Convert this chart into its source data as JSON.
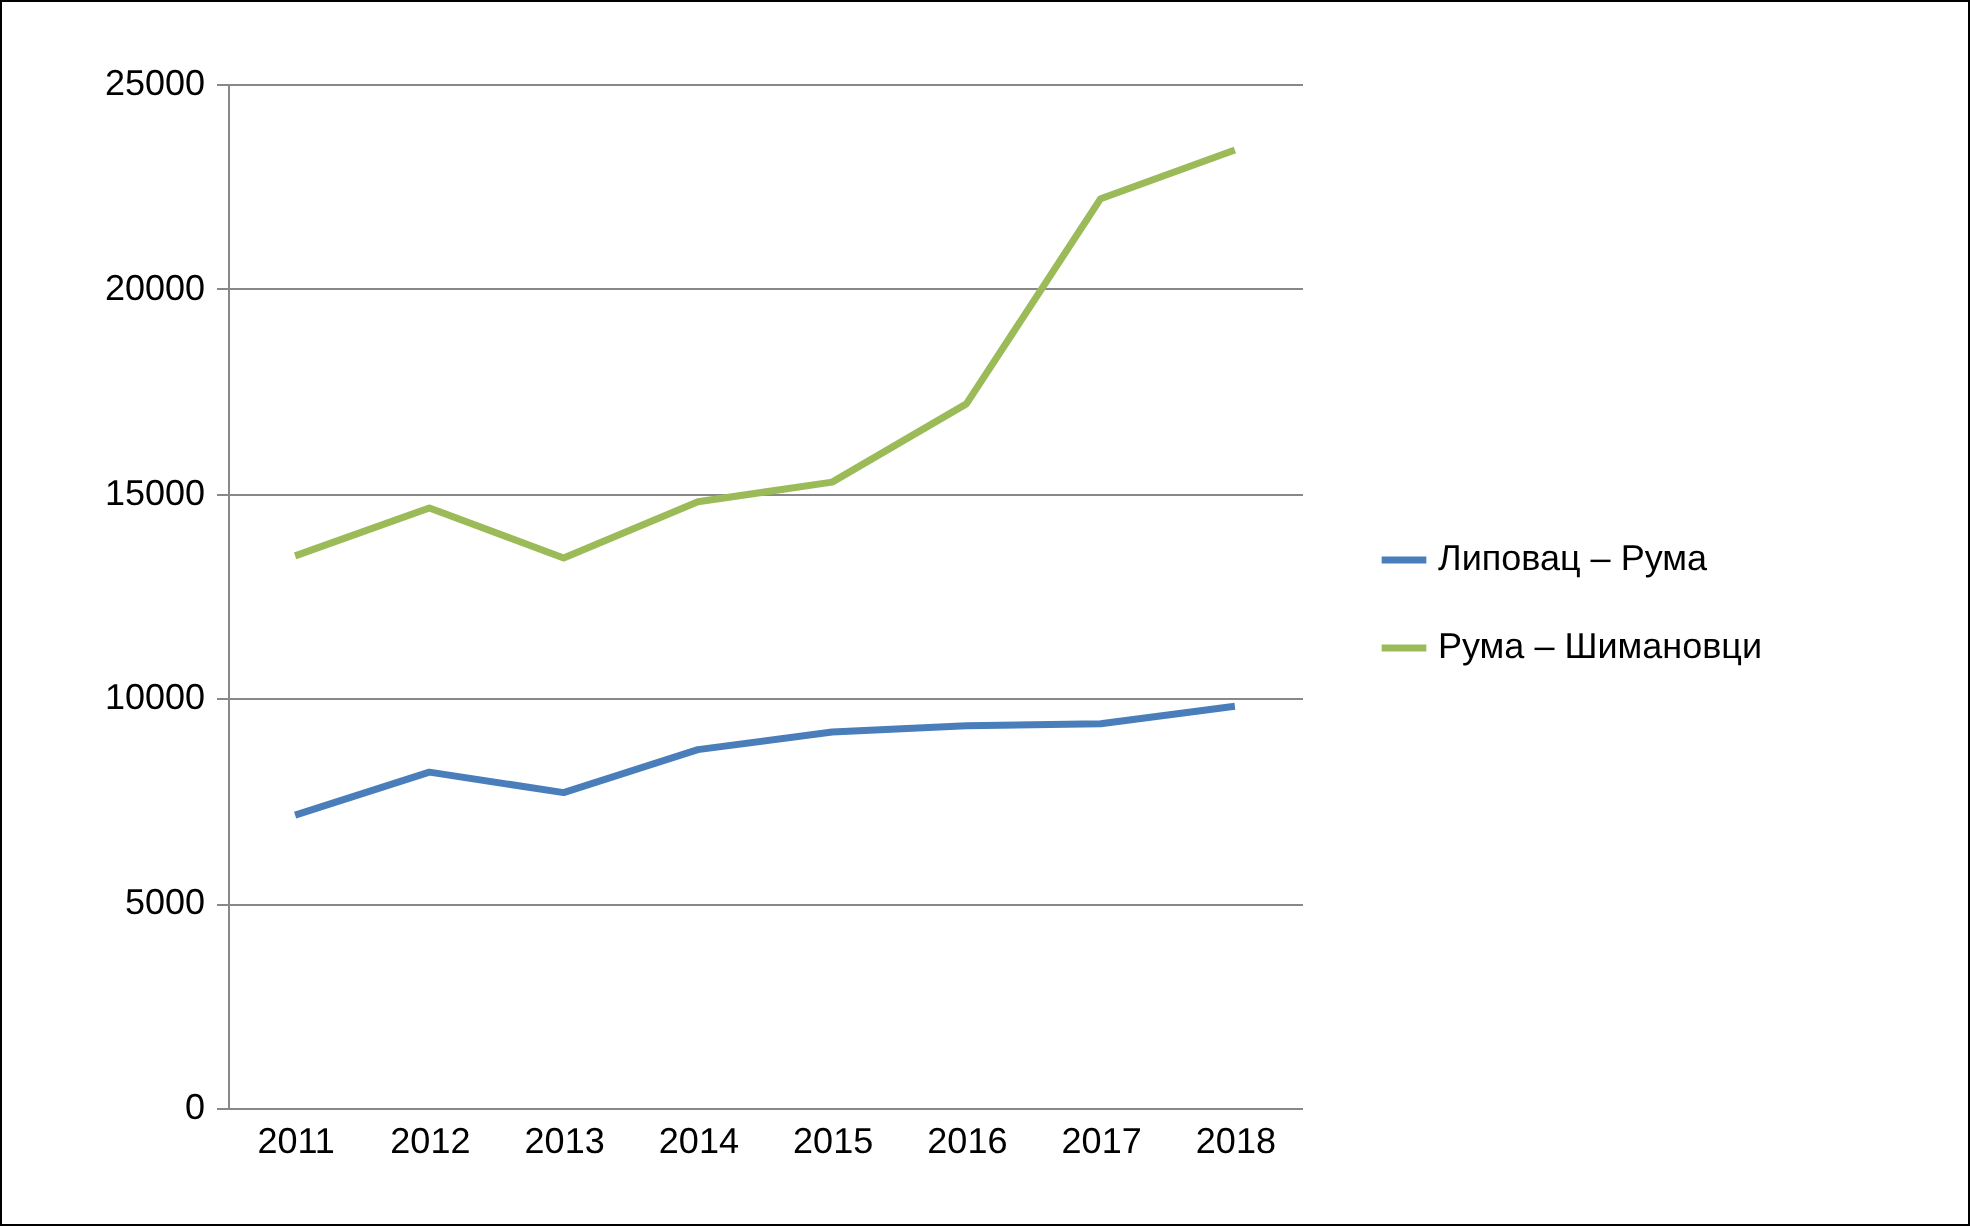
{
  "chart_data": {
    "type": "line",
    "categories": [
      "2011",
      "2012",
      "2013",
      "2014",
      "2015",
      "2016",
      "2017",
      "2018"
    ],
    "series": [
      {
        "name": "Липовац – Рума",
        "color": "#4a7ebb",
        "values": [
          7150,
          8200,
          7700,
          8750,
          9180,
          9330,
          9380,
          9810
        ]
      },
      {
        "name": "Рума – Шимановци",
        "color": "#9bbb59",
        "values": [
          13480,
          14650,
          13430,
          14800,
          15280,
          17190,
          22200,
          23390
        ]
      }
    ],
    "ylim": [
      0,
      25000
    ],
    "yticks": [
      0,
      5000,
      10000,
      15000,
      20000,
      25000
    ],
    "grid": "y",
    "legend": "right",
    "marker": "none",
    "line_style": "solid"
  }
}
